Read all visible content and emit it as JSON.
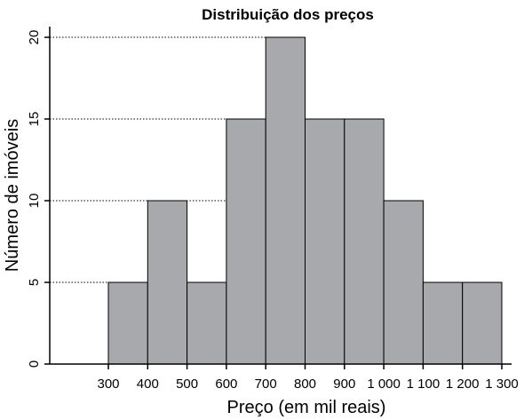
{
  "chart_data": {
    "type": "bar",
    "title": "Distribuição dos preços",
    "xlabel": "Preço (em mil reais)",
    "ylabel": "Número de imóveis",
    "x_ticks": [
      "300",
      "400",
      "500",
      "600",
      "700",
      "800",
      "900",
      "1 000",
      "1 100",
      "1 200",
      "1 300"
    ],
    "y_ticks": [
      "0",
      "5",
      "10",
      "15",
      "20"
    ],
    "bins": [
      {
        "from": 300,
        "to": 400,
        "value": 5
      },
      {
        "from": 400,
        "to": 500,
        "value": 10
      },
      {
        "from": 500,
        "to": 600,
        "value": 5
      },
      {
        "from": 600,
        "to": 700,
        "value": 15
      },
      {
        "from": 700,
        "to": 800,
        "value": 20
      },
      {
        "from": 800,
        "to": 900,
        "value": 15
      },
      {
        "from": 900,
        "to": 1000,
        "value": 15
      },
      {
        "from": 1000,
        "to": 1100,
        "value": 10
      },
      {
        "from": 1100,
        "to": 1200,
        "value": 5
      },
      {
        "from": 1200,
        "to": 1300,
        "value": 5
      }
    ],
    "xlim": [
      200,
      1300
    ],
    "ylim": [
      0,
      20
    ],
    "grid": "dotted horizontal lines at 5, 10, 15, 20",
    "bar_color": "#a7a9ac"
  }
}
